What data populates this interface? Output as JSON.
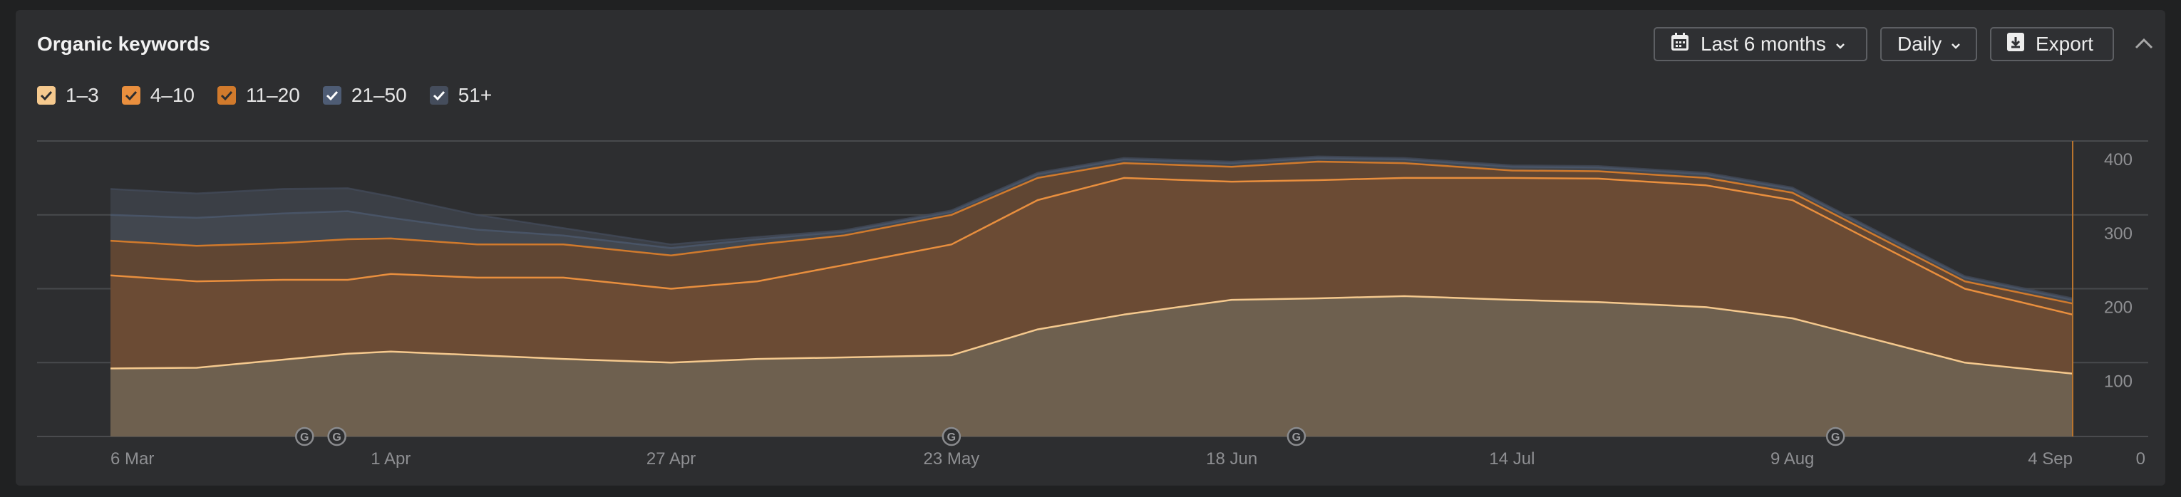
{
  "header": {
    "title": "Organic keywords",
    "range_label": "Last 6 months",
    "granularity_label": "Daily",
    "export_label": "Export"
  },
  "icons": {
    "range": "calendar-icon",
    "export": "download-icon",
    "collapse": "chevron-up-icon",
    "dropdown": "chevron-down-icon"
  },
  "legend": [
    {
      "label": "1–3",
      "color": "#f5c98e"
    },
    {
      "label": "4–10",
      "color": "#e98f3e"
    },
    {
      "label": "11–20",
      "color": "#d17a2c"
    },
    {
      "label": "21–50",
      "color": "#4e5c74"
    },
    {
      "label": "51+",
      "color": "#454d5c"
    }
  ],
  "chart_data": {
    "type": "area",
    "stacked": true,
    "x": [
      "6 Mar",
      "14 Mar",
      "22 Mar",
      "28 Mar",
      "1 Apr",
      "9 Apr",
      "17 Apr",
      "27 Apr",
      "5 May",
      "13 May",
      "23 May",
      "31 May",
      "8 Jun",
      "18 Jun",
      "26 Jun",
      "4 Jul",
      "14 Jul",
      "22 Jul",
      "1 Aug",
      "9 Aug",
      "17 Aug",
      "25 Aug",
      "4 Sep"
    ],
    "x_tick_labels": [
      "6 Mar",
      "1 Apr",
      "27 Apr",
      "23 May",
      "18 Jun",
      "14 Jul",
      "9 Aug",
      "4 Sep"
    ],
    "y_tick_labels": [
      "0",
      "100",
      "200",
      "300",
      "400"
    ],
    "ylim": [
      0,
      400
    ],
    "grid": true,
    "legend_position": "top-left",
    "series": [
      {
        "name": "1–3",
        "color": "#f5c98e",
        "values": [
          92,
          93,
          104,
          112,
          115,
          110,
          105,
          100,
          105,
          107,
          110,
          145,
          165,
          185,
          187,
          190,
          185,
          182,
          175,
          160,
          130,
          100,
          85
        ]
      },
      {
        "name": "4–10",
        "color": "#e98f3e",
        "values": [
          126,
          117,
          108,
          100,
          105,
          105,
          110,
          100,
          105,
          125,
          150,
          175,
          185,
          160,
          160,
          160,
          165,
          167,
          165,
          160,
          130,
          100,
          80
        ]
      },
      {
        "name": "11–20",
        "color": "#d17a2c",
        "values": [
          47,
          48,
          50,
          55,
          48,
          45,
          45,
          45,
          50,
          40,
          40,
          30,
          20,
          20,
          25,
          20,
          10,
          10,
          10,
          10,
          10,
          10,
          15
        ]
      },
      {
        "name": "21–50",
        "color": "#4e5c74",
        "values": [
          35,
          38,
          40,
          38,
          28,
          20,
          12,
          10,
          7,
          5,
          4,
          5,
          5,
          5,
          5,
          5,
          5,
          5,
          5,
          5,
          5,
          5,
          5
        ]
      },
      {
        "name": "51+",
        "color": "#454d5c",
        "values": [
          35,
          33,
          33,
          31,
          29,
          20,
          10,
          5,
          3,
          2,
          2,
          2,
          2,
          2,
          2,
          2,
          2,
          2,
          2,
          2,
          2,
          2,
          2
        ]
      }
    ],
    "annotation_dates": [
      "24 Mar",
      "27 Mar",
      "23 May",
      "24 Jun",
      "13 Aug"
    ],
    "annotation_label": "G"
  }
}
